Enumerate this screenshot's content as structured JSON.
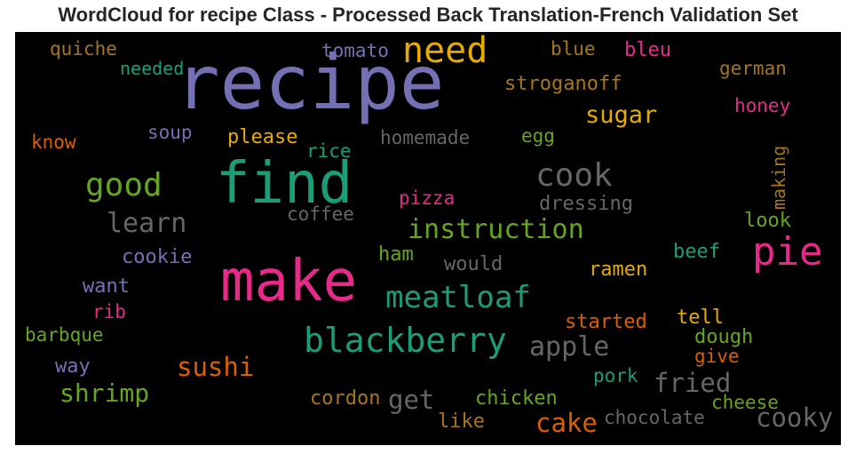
{
  "chart_data": {
    "type": "wordcloud",
    "title": "WordCloud for recipe Class - Processed Back Translation-French Validation Set",
    "background": "#000000",
    "words": [
      {
        "text": "recipe",
        "color": "#7570b3"
      },
      {
        "text": "find",
        "color": "#1b9e77"
      },
      {
        "text": "make",
        "color": "#e7298a"
      },
      {
        "text": "need",
        "color": "#e6ab02"
      },
      {
        "text": "pie",
        "color": "#e7298a"
      },
      {
        "text": "blackberry",
        "color": "#1b9e77"
      },
      {
        "text": "meatloaf",
        "color": "#1b9e77"
      },
      {
        "text": "cook",
        "color": "#666666"
      },
      {
        "text": "good",
        "color": "#66a61e"
      },
      {
        "text": "instruction",
        "color": "#66a61e"
      },
      {
        "text": "sugar",
        "color": "#e6ab02"
      },
      {
        "text": "learn",
        "color": "#666666"
      },
      {
        "text": "sushi",
        "color": "#d95f02"
      },
      {
        "text": "shrimp",
        "color": "#66a61e"
      },
      {
        "text": "apple",
        "color": "#666666"
      },
      {
        "text": "fried",
        "color": "#666666"
      },
      {
        "text": "cooky",
        "color": "#666666"
      },
      {
        "text": "cake",
        "color": "#d95f02"
      },
      {
        "text": "get",
        "color": "#666666"
      },
      {
        "text": "dressing",
        "color": "#666666"
      },
      {
        "text": "stroganoff",
        "color": "#a6761d"
      },
      {
        "text": "homemade",
        "color": "#666666"
      },
      {
        "text": "chocolate",
        "color": "#666666"
      },
      {
        "text": "german",
        "color": "#a6761d"
      },
      {
        "text": "honey",
        "color": "#e7298a"
      },
      {
        "text": "tomato",
        "color": "#7570b3"
      },
      {
        "text": "quiche",
        "color": "#a6761d"
      },
      {
        "text": "needed",
        "color": "#1b9e77"
      },
      {
        "text": "blue",
        "color": "#a6761d"
      },
      {
        "text": "bleu",
        "color": "#e7298a"
      },
      {
        "text": "soup",
        "color": "#7570b3"
      },
      {
        "text": "please",
        "color": "#e6ab02"
      },
      {
        "text": "rice",
        "color": "#1b9e77"
      },
      {
        "text": "egg",
        "color": "#66a61e"
      },
      {
        "text": "know",
        "color": "#d95f02"
      },
      {
        "text": "making",
        "color": "#a6761d"
      },
      {
        "text": "pizza",
        "color": "#e7298a"
      },
      {
        "text": "coffee",
        "color": "#666666"
      },
      {
        "text": "look",
        "color": "#66a61e"
      },
      {
        "text": "cookie",
        "color": "#7570b3"
      },
      {
        "text": "ham",
        "color": "#66a61e"
      },
      {
        "text": "would",
        "color": "#666666"
      },
      {
        "text": "beef",
        "color": "#1b9e77"
      },
      {
        "text": "ramen",
        "color": "#e6ab02"
      },
      {
        "text": "want",
        "color": "#7570b3"
      },
      {
        "text": "rib",
        "color": "#e7298a"
      },
      {
        "text": "barbque",
        "color": "#66a61e"
      },
      {
        "text": "started",
        "color": "#d95f02"
      },
      {
        "text": "tell",
        "color": "#e6ab02"
      },
      {
        "text": "dough",
        "color": "#66a61e"
      },
      {
        "text": "give",
        "color": "#d95f02"
      },
      {
        "text": "way",
        "color": "#7570b3"
      },
      {
        "text": "pork",
        "color": "#1b9e77"
      },
      {
        "text": "cordon",
        "color": "#a6761d"
      },
      {
        "text": "chicken",
        "color": "#66a61e"
      },
      {
        "text": "cheese",
        "color": "#66a61e"
      },
      {
        "text": "like",
        "color": "#a6761d"
      }
    ]
  }
}
